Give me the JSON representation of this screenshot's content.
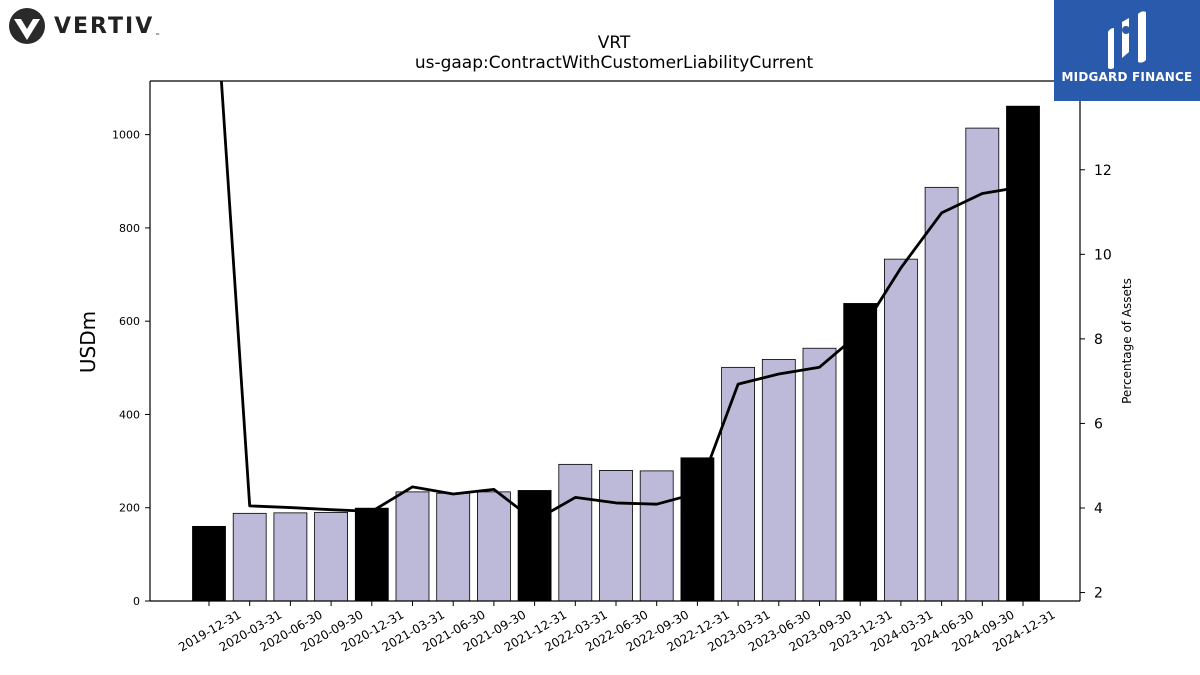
{
  "brand_left": {
    "name": "VERTIV",
    "trademark": "™",
    "icon": "vertiv-v-logo-icon"
  },
  "brand_right": {
    "name": "MIDGARD FINANCE",
    "icon": "midgard-m-logo-icon",
    "bg_color": "#2a5aab"
  },
  "colors": {
    "bar_default": "#bcb9d9",
    "bar_highlight": "#000000",
    "line": "#000000"
  },
  "chart_data": {
    "type": "bar",
    "title": "VRT",
    "subtitle": "us-gaap:ContractWithCustomerLiabilityCurrent",
    "xlabel": "",
    "ylabel": "USDm",
    "y2label": "Percentage of Assets",
    "ylim": [
      0,
      1115
    ],
    "y2lim": [
      1.8,
      14.1
    ],
    "yticks": [
      0,
      200,
      400,
      600,
      800,
      1000
    ],
    "y2ticks": [
      2,
      4,
      6,
      8,
      10,
      12
    ],
    "grid": false,
    "categories": [
      "2019-12-31",
      "2020-03-31",
      "2020-06-30",
      "2020-09-30",
      "2020-12-31",
      "2021-03-31",
      "2021-06-30",
      "2021-09-30",
      "2021-12-31",
      "2022-03-31",
      "2022-06-30",
      "2022-09-30",
      "2022-12-31",
      "2023-03-31",
      "2023-06-30",
      "2023-09-30",
      "2023-12-31",
      "2024-03-31",
      "2024-06-30",
      "2024-09-30",
      "2024-12-31"
    ],
    "highlight": [
      true,
      false,
      false,
      false,
      true,
      false,
      false,
      false,
      true,
      false,
      false,
      false,
      true,
      false,
      false,
      false,
      true,
      false,
      false,
      false,
      true
    ],
    "series": [
      {
        "type": "bar",
        "values": [
          160,
          188,
          189,
          190,
          199,
          234,
          231,
          234,
          237,
          293,
          280,
          279,
          307,
          501,
          518,
          542,
          638,
          733,
          887,
          1014,
          1061
        ]
      },
      {
        "type": "line",
        "axis": "right",
        "values": [
          18.5,
          4.05,
          4.01,
          3.96,
          3.92,
          4.5,
          4.33,
          4.44,
          3.7,
          4.25,
          4.12,
          4.09,
          4.35,
          6.93,
          7.17,
          7.33,
          8.15,
          9.68,
          10.98,
          11.44,
          11.6
        ]
      }
    ]
  }
}
